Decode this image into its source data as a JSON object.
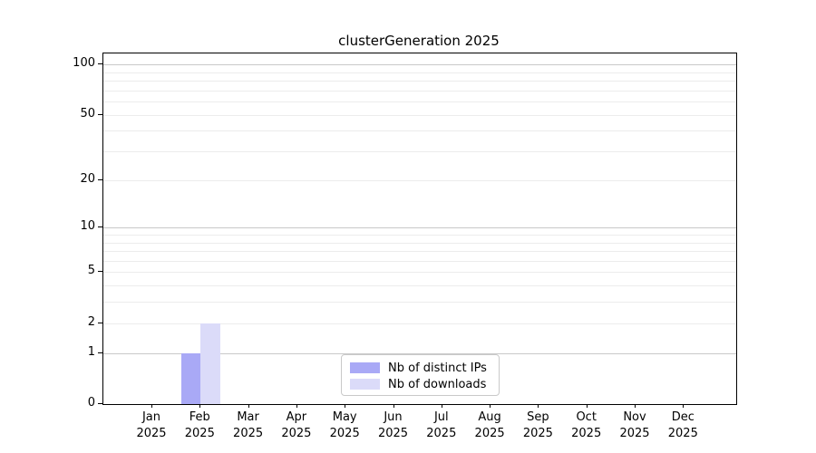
{
  "chart_data": {
    "type": "bar",
    "title": "clusterGeneration 2025",
    "x_categories": [
      {
        "month": "Jan",
        "year": "2025"
      },
      {
        "month": "Feb",
        "year": "2025"
      },
      {
        "month": "Mar",
        "year": "2025"
      },
      {
        "month": "Apr",
        "year": "2025"
      },
      {
        "month": "May",
        "year": "2025"
      },
      {
        "month": "Jun",
        "year": "2025"
      },
      {
        "month": "Jul",
        "year": "2025"
      },
      {
        "month": "Aug",
        "year": "2025"
      },
      {
        "month": "Sep",
        "year": "2025"
      },
      {
        "month": "Oct",
        "year": "2025"
      },
      {
        "month": "Nov",
        "year": "2025"
      },
      {
        "month": "Dec",
        "year": "2025"
      }
    ],
    "series": [
      {
        "name": "Nb of distinct IPs",
        "color": "#a9a9f6",
        "values": [
          0,
          1,
          0,
          0,
          0,
          0,
          0,
          0,
          0,
          0,
          0,
          0
        ]
      },
      {
        "name": "Nb of downloads",
        "color": "#dbdbf9",
        "values": [
          0,
          2,
          0,
          0,
          0,
          0,
          0,
          0,
          0,
          0,
          0,
          0
        ]
      }
    ],
    "y_axis": {
      "scale": "log1p",
      "tick_values": [
        0,
        1,
        2,
        5,
        10,
        20,
        50,
        100
      ],
      "max_tick": 100,
      "grid_major_values": [
        1,
        10,
        100
      ],
      "grid_minor_values": [
        2,
        3,
        4,
        5,
        6,
        7,
        8,
        9,
        20,
        30,
        40,
        50,
        60,
        70,
        80,
        90
      ]
    },
    "legend": {
      "position": "lower center"
    },
    "colors": {
      "grid_major": "#c9c9c9",
      "grid_minor": "#ececec",
      "axis": "#000000"
    }
  }
}
